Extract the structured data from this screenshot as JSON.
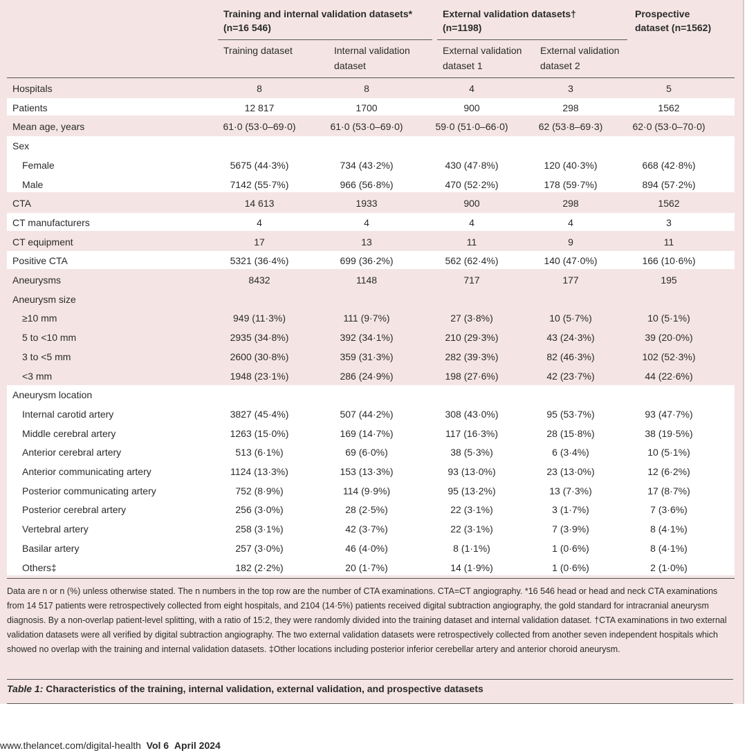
{
  "header": {
    "groups": [
      [
        "Training and internal validation datasets*",
        "(n=16 546)"
      ],
      [
        "External validation datasets†",
        "(n=1198)"
      ],
      [
        "Prospective",
        "dataset (n=1562)"
      ]
    ],
    "columns": [
      [
        "Training dataset"
      ],
      [
        "Internal validation",
        "dataset"
      ],
      [
        "External validation",
        "dataset 1"
      ],
      [
        "External validation",
        "dataset 2"
      ]
    ]
  },
  "table": {
    "groups": [
      {
        "rows": [
          [
            "Hospitals",
            "8",
            "8",
            "4",
            "3",
            "5"
          ]
        ]
      },
      {
        "rows": [
          [
            "Patients",
            "12 817",
            "1700",
            "900",
            "298",
            "1562"
          ]
        ]
      },
      {
        "rows": [
          [
            "Mean age, years",
            "61·0 (53·0–69·0)",
            "61·0 (53·0–69·0)",
            "59·0 (51·0–66·0)",
            "62 (53·8–69·3)",
            "62·0 (53·0–70·0)"
          ]
        ]
      },
      {
        "rows": [
          [
            "Sex"
          ],
          [
            "Female",
            "5675 (44·3%)",
            "734 (43·2%)",
            "430 (47·8%)",
            "120 (40·3%)",
            "668 (42·8%)"
          ],
          [
            "Male",
            "7142 (55·7%)",
            "966 (56·8%)",
            "470 (52·2%)",
            "178 (59·7%)",
            "894 (57·2%)"
          ]
        ]
      },
      {
        "rows": [
          [
            "CTA",
            "14 613",
            "1933",
            "900",
            "298",
            "1562"
          ]
        ]
      },
      {
        "rows": [
          [
            "CT manufacturers",
            "4",
            "4",
            "4",
            "4",
            "3"
          ]
        ]
      },
      {
        "rows": [
          [
            "CT equipment",
            "17",
            "13",
            "11",
            "9",
            "11"
          ]
        ]
      },
      {
        "rows": [
          [
            "Positive CTA",
            "5321 (36·4%)",
            "699 (36·2%)",
            "562 (62·4%)",
            "140 (47·0%)",
            "166 (10·6%)"
          ]
        ]
      },
      {
        "rows": [
          [
            "Aneurysms",
            "8432",
            "1148",
            "717",
            "177",
            "195"
          ]
        ]
      },
      {
        "rows": [
          [
            "Aneurysm size"
          ],
          [
            "≥10 mm",
            "949 (11·3%)",
            "111 (9·7%)",
            "27 (3·8%)",
            "10 (5·7%)",
            "10 (5·1%)"
          ],
          [
            "5 to <10 mm",
            "2935 (34·8%)",
            "392 (34·1%)",
            "210 (29·3%)",
            "43 (24·3%)",
            "39 (20·0%)"
          ],
          [
            "3 to <5 mm",
            "2600 (30·8%)",
            "359 (31·3%)",
            "282 (39·3%)",
            "82 (46·3%)",
            "102 (52·3%)"
          ],
          [
            "<3 mm",
            "1948 (23·1%)",
            "286 (24·9%)",
            "198 (27·6%)",
            "42 (23·7%)",
            "44 (22·6%)"
          ]
        ]
      },
      {
        "rows": [
          [
            "Aneurysm location"
          ],
          [
            "Internal carotid artery",
            "3827 (45·4%)",
            "507 (44·2%)",
            "308 (43·0%)",
            "95 (53·7%)",
            "93 (47·7%)"
          ],
          [
            "Middle cerebral artery",
            "1263 (15·0%)",
            "169 (14·7%)",
            "117 (16·3%)",
            "28 (15·8%)",
            "38 (19·5%)"
          ],
          [
            "Anterior cerebral artery",
            "513 (6·1%)",
            "69 (6·0%)",
            "38 (5·3%)",
            "6 (3·4%)",
            "10 (5·1%)"
          ],
          [
            "Anterior communicating artery",
            "1124 (13·3%)",
            "153 (13·3%)",
            "93 (13·0%)",
            "23 (13·0%)",
            "12 (6·2%)"
          ],
          [
            "Posterior communicating artery",
            "752 (8·9%)",
            "114 (9·9%)",
            "95 (13·2%)",
            "13 (7·3%)",
            "17 (8·7%)"
          ],
          [
            "Posterior cerebral artery",
            "256 (3·0%)",
            "28 (2·5%)",
            "22 (3·1%)",
            "3 (1·7%)",
            "7 (3·6%)"
          ],
          [
            "Vertebral artery",
            "258 (3·1%)",
            "42 (3·7%)",
            "22 (3·1%)",
            "7 (3·9%)",
            "8 (4·1%)"
          ],
          [
            "Basilar artery",
            "257 (3·0%)",
            "46 (4·0%)",
            "8 (1·1%)",
            "1 (0·6%)",
            "8 (4·1%)"
          ],
          [
            "Others‡",
            "182 (2·2%)",
            "20 (1·7%)",
            "14 (1·9%)",
            "1 (0·6%)",
            "2 (1·0%)"
          ]
        ]
      }
    ]
  },
  "footnote": "Data are n or n (%) unless otherwise stated. The n numbers in the top row are the number of CTA examinations. CTA=CT angiography. *16 546 head or head and neck CTA examinations from 14 517 patients were retrospectively collected from eight hospitals, and 2104 (14·5%) patients received digital subtraction angiography, the gold standard for intracranial aneurysm diagnosis. By a non-overlap patient-level splitting, with a ratio of 15:2, they were randomly divided into the training dataset and internal validation dataset. †CTA examinations in two external validation datasets were all verified by digital subtraction angiography. The two external validation datasets were retrospectively collected from another seven independent hospitals which showed no overlap with the training and internal validation datasets. ‡Other locations including posterior inferior cerebellar artery and anterior choroid aneurysm.",
  "caption": {
    "label": "Table 1:",
    "text": "Characteristics of the training, internal validation, external validation, and prospective datasets"
  },
  "footer": {
    "url": "www.thelancet.com/digital-health",
    "volume": "Vol 6",
    "date": "April 2024"
  }
}
